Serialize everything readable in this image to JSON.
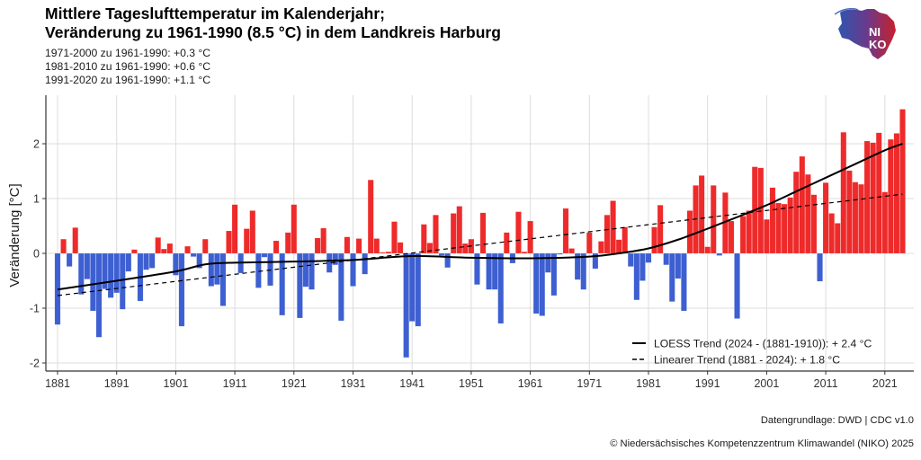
{
  "header": {
    "title_line1": "Mittlere Tageslufttemperatur im Kalenderjahr;",
    "title_line2": "Veränderung zu 1961-1990 (8.5 °C) in dem Landkreis Harburg",
    "subtitle_lines": [
      "1971-2000 zu 1961-1990: +0.3 °C",
      "1981-2010 zu 1961-1990: +0.6 °C",
      "1991-2020 zu 1961-1990: +1.1 °C"
    ]
  },
  "logo": {
    "text_line1": "NI",
    "text_line2": "KO"
  },
  "footer": {
    "source": "Datengrundlage: DWD | CDC v1.0",
    "copyright": "© Niedersächsisches Kompetenzzentrum Klimawandel (NIKO) 2025"
  },
  "colors": {
    "positive": "#ee2a2a",
    "negative": "#3d5fd1",
    "trend": "#000000",
    "grid": "#dcdcdc"
  },
  "chart_data": {
    "type": "bar",
    "title": "Mittlere Tageslufttemperatur im Kalenderjahr; Veränderung zu 1961-1990 (8.5 °C) in dem Landkreis Harburg",
    "xlabel": "",
    "ylabel": "Veränderung [°C]",
    "xlim": [
      1879,
      2025.5
    ],
    "ylim": [
      -2.15,
      2.8
    ],
    "x_ticks": [
      1881,
      1891,
      1901,
      1911,
      1921,
      1931,
      1941,
      1951,
      1961,
      1971,
      1981,
      1991,
      2001,
      2011,
      2021
    ],
    "y_ticks": [
      -2,
      -1,
      0,
      1,
      2
    ],
    "grid": true,
    "legend_position": "bottom-right",
    "legend": [
      {
        "label": "LOESS Trend (2024 - (1881-1910)): + 2.4 °C",
        "style": "solid"
      },
      {
        "label": "Linearer Trend (1881 - 2024): + 1.8 °C",
        "style": "dashed"
      }
    ],
    "start_year": 1881,
    "values": [
      -1.3,
      0.26,
      -0.24,
      0.47,
      -0.75,
      -0.47,
      -1.05,
      -1.53,
      -0.65,
      -0.81,
      -0.72,
      -1.02,
      -0.33,
      0.07,
      -0.87,
      -0.3,
      -0.27,
      0.29,
      0.08,
      0.18,
      -0.4,
      -1.33,
      0.13,
      -0.06,
      -0.27,
      0.26,
      -0.6,
      -0.57,
      -0.96,
      0.41,
      0.89,
      -0.36,
      0.45,
      0.78,
      -0.63,
      -0.07,
      -0.59,
      0.23,
      -1.13,
      0.38,
      0.89,
      -1.18,
      -0.61,
      -0.66,
      0.28,
      0.46,
      -0.35,
      -0.21,
      -1.23,
      0.3,
      -0.6,
      0.27,
      -0.38,
      1.34,
      0.27,
      0.02,
      0.03,
      0.58,
      0.2,
      -1.9,
      -1.24,
      -1.33,
      0.53,
      0.19,
      0.7,
      -0.04,
      -0.26,
      0.73,
      0.86,
      0.18,
      0.26,
      -0.57,
      0.74,
      -0.66,
      -0.66,
      -1.28,
      0.38,
      -0.18,
      0.76,
      0.03,
      0.59,
      -1.1,
      -1.14,
      -0.35,
      -0.77,
      -0.02,
      0.82,
      0.09,
      -0.48,
      -0.66,
      0.38,
      -0.28,
      0.22,
      0.7,
      0.96,
      0.25,
      0.48,
      -0.24,
      -0.85,
      -0.5,
      -0.17,
      0.48,
      0.88,
      -0.21,
      -0.88,
      -0.46,
      -1.05,
      0.78,
      1.24,
      1.42,
      0.12,
      1.24,
      -0.04,
      1.11,
      0.59,
      -1.19,
      0.68,
      0.78,
      1.58,
      1.56,
      0.62,
      1.2,
      0.92,
      0.9,
      1.02,
      1.49,
      1.77,
      1.44,
      1.07,
      -0.51,
      1.29,
      0.73,
      0.55,
      2.21,
      1.51,
      1.3,
      1.26,
      2.05,
      2.02,
      2.2,
      1.12,
      2.08,
      2.19,
      2.63
    ],
    "loess_trend": {
      "x": [
        1881,
        1891,
        1901,
        1906,
        1911,
        1921,
        1931,
        1941,
        1951,
        1961,
        1971,
        1976,
        1981,
        1986,
        1991,
        1996,
        2001,
        2006,
        2011,
        2016,
        2021,
        2024
      ],
      "y": [
        -0.66,
        -0.5,
        -0.33,
        -0.2,
        -0.17,
        -0.15,
        -0.12,
        -0.05,
        -0.08,
        -0.09,
        -0.06,
        0.0,
        0.09,
        0.25,
        0.45,
        0.66,
        0.88,
        1.13,
        1.38,
        1.63,
        1.88,
        2.0
      ]
    },
    "linear_trend": {
      "x": [
        1881,
        2024
      ],
      "y": [
        -0.77,
        1.08
      ]
    }
  }
}
